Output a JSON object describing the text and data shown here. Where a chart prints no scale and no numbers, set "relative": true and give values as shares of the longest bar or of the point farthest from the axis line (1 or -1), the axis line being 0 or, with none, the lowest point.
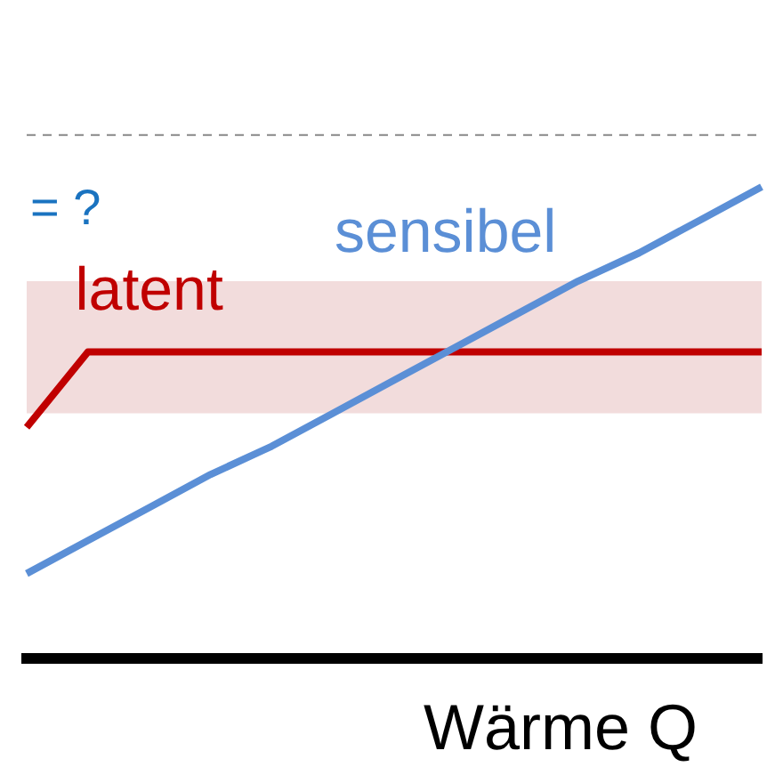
{
  "chart_data": {
    "type": "line",
    "relative": true,
    "xlabel": "Wärme Q",
    "annotations": [
      "= ?"
    ],
    "categories": [
      null,
      null,
      null,
      null,
      null,
      null,
      null,
      null,
      null,
      null,
      null,
      null,
      null
    ],
    "series": [
      {
        "name": "sensibel",
        "color": "#5b8fd6",
        "values": [
          0.18,
          0.25,
          0.32,
          0.39,
          0.45,
          0.52,
          0.59,
          0.66,
          0.73,
          0.8,
          0.86,
          0.93,
          1
        ]
      },
      {
        "name": "latent",
        "color": "#c00000",
        "values": [
          0.49,
          0.65,
          0.65,
          0.65,
          0.65,
          0.65,
          0.65,
          0.65,
          0.65,
          0.65,
          0.65,
          0.65,
          0.65
        ]
      }
    ],
    "bands": [
      {
        "axis": "y",
        "from": 0.52,
        "to": 0.8,
        "color": "#f2dcdc"
      }
    ],
    "ref_lines": [
      {
        "axis": "y",
        "value": 1.11,
        "color": "#888888",
        "line_style": "dashed"
      }
    ],
    "legend": false,
    "grid": false,
    "marker": "none",
    "line_style": "solid"
  }
}
